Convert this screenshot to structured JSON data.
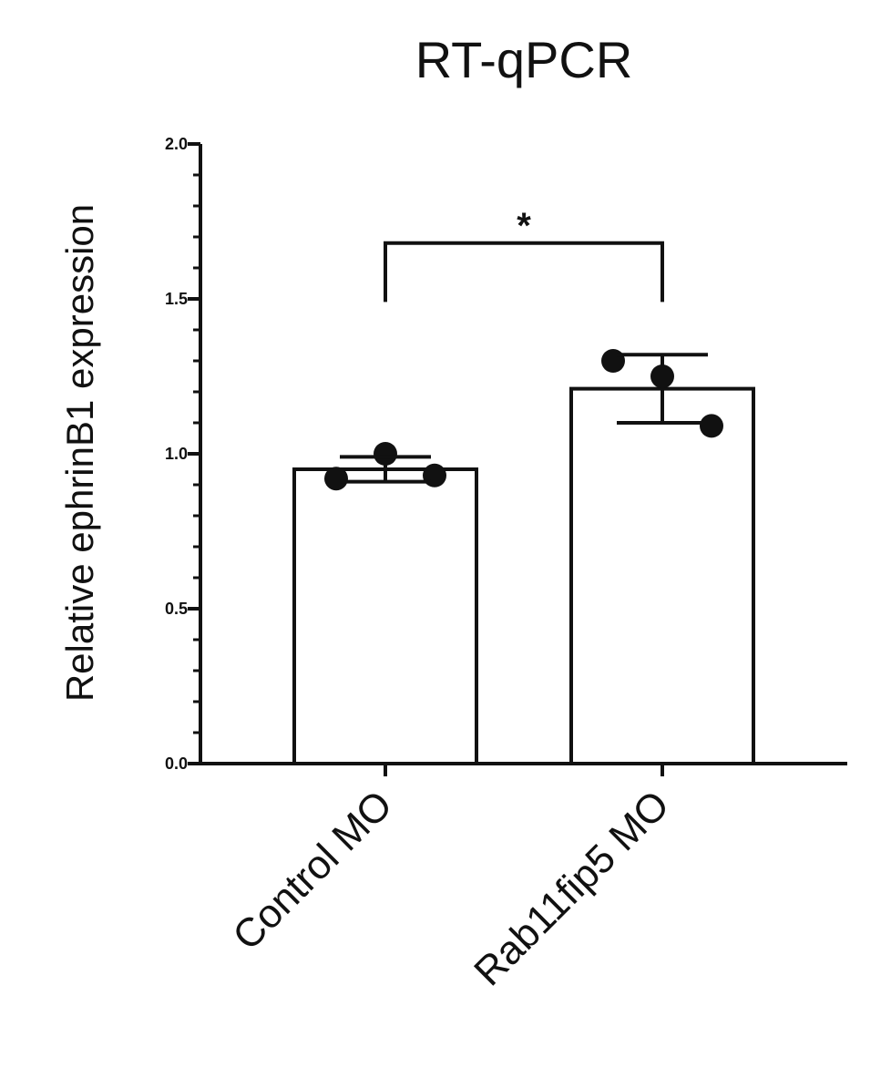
{
  "chart_data": {
    "type": "bar",
    "title": "RT-qPCR",
    "ylabel": "Relative ephrinB1 expression",
    "xlabel": "",
    "ylim": [
      0,
      2.0
    ],
    "yticks": [
      "0.0",
      "0.5",
      "1.0",
      "1.5",
      "2.0"
    ],
    "yminor_step": 0.1,
    "categories": [
      "Control MO",
      "Rab11fip5 MO"
    ],
    "values": [
      0.95,
      1.21
    ],
    "error": [
      0.04,
      0.11
    ],
    "points": [
      [
        0.92,
        1.0,
        0.93
      ],
      [
        1.3,
        1.25,
        1.09
      ]
    ],
    "significance": {
      "from": 0,
      "to": 1,
      "label": "*",
      "level": 1.68,
      "drop": 1.49
    },
    "grid": false,
    "legend": "none",
    "colors": {
      "bar_fill": "#ffffff",
      "stroke": "#111111",
      "point": "#111111"
    }
  }
}
